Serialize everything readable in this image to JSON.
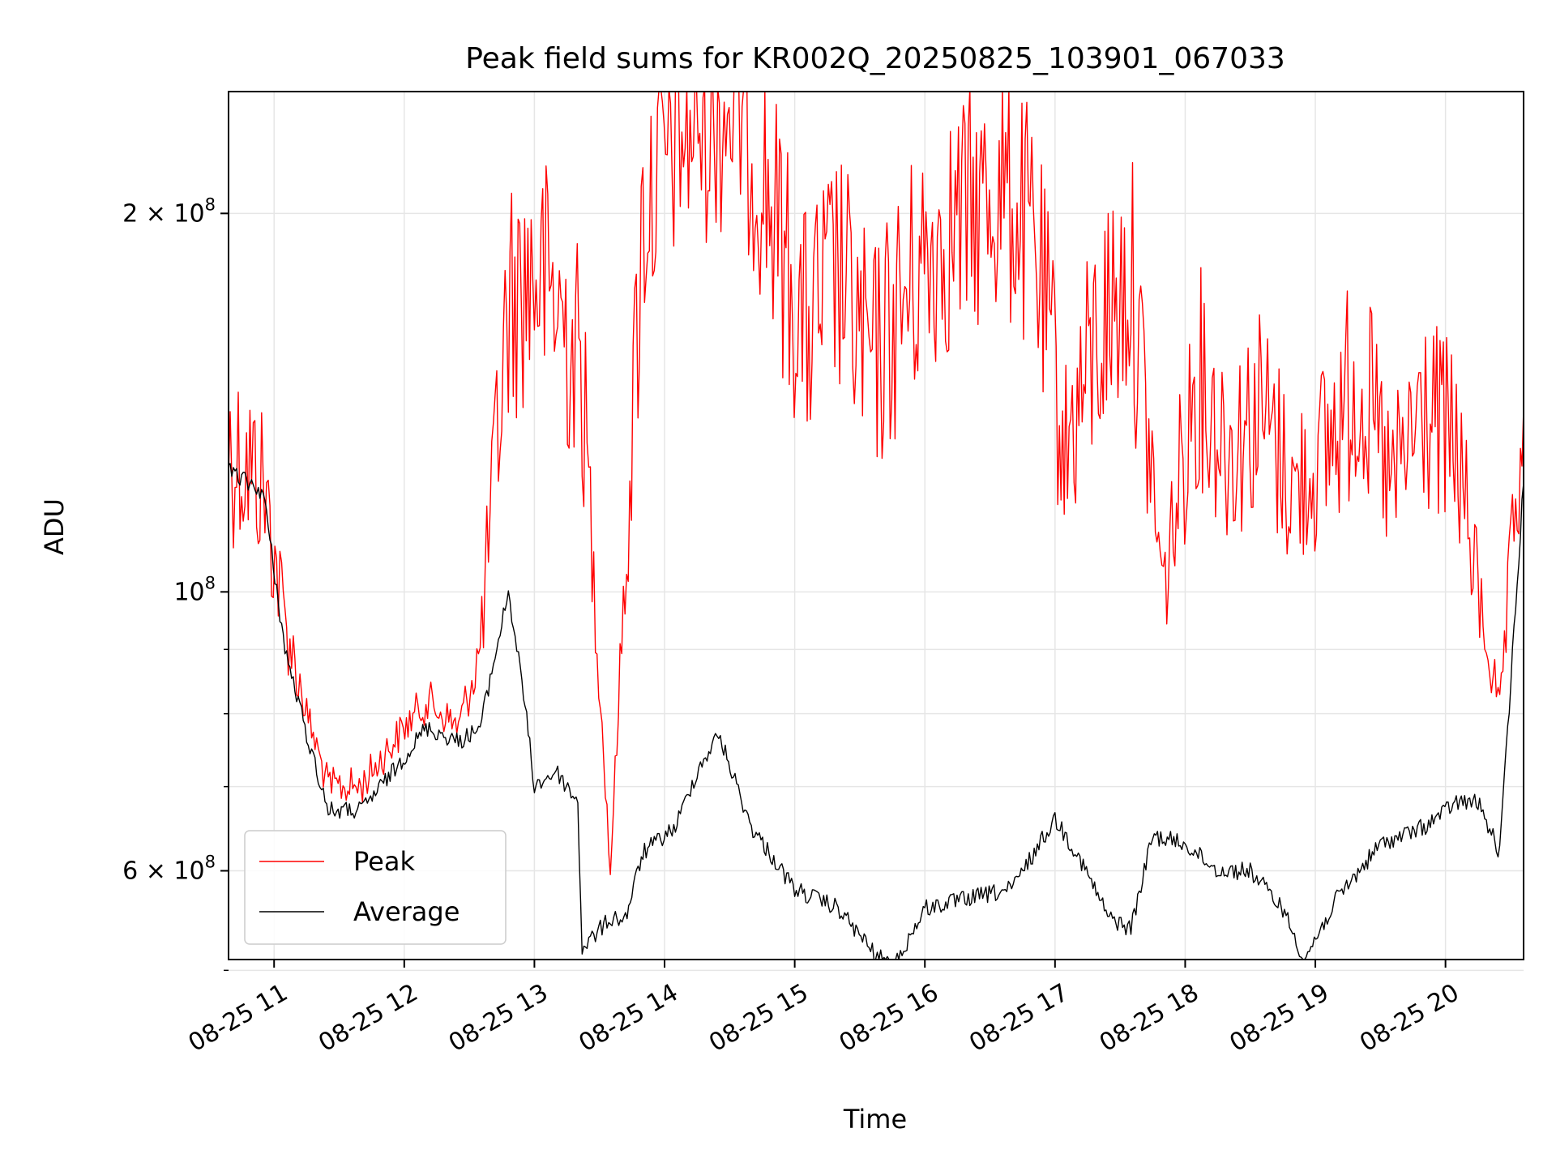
{
  "chart_data": {
    "type": "line",
    "title": "Peak field sums for KR002Q_20250825_103901_067033",
    "xlabel": "Time",
    "ylabel": "ADU",
    "yscale": "log",
    "xlim": [
      "2025-08-25 10:39",
      "2025-08-25 20:36"
    ],
    "ylim": [
      51000000,
      250000000
    ],
    "grid": true,
    "legend_position": "lower-left",
    "x_ticks": [
      "2025-08-25 11:00",
      "2025-08-25 12:00",
      "2025-08-25 13:00",
      "2025-08-25 14:00",
      "2025-08-25 15:00",
      "2025-08-25 16:00",
      "2025-08-25 17:00",
      "2025-08-25 18:00",
      "2025-08-25 19:00",
      "2025-08-25 20:00"
    ],
    "x_tick_labels": [
      "08-25 11",
      "08-25 12",
      "08-25 13",
      "08-25 14",
      "08-25 15",
      "08-25 16",
      "08-25 17",
      "08-25 18",
      "08-25 19",
      "08-25 20"
    ],
    "y_ticks": [
      {
        "value": 200000000,
        "label_mantissa": "2 × 10",
        "label_exp": "8"
      },
      {
        "value": 100000000,
        "label_mantissa": "10",
        "label_exp": "8"
      },
      {
        "value": 60000000,
        "label_mantissa": "6 × 10",
        "label_exp": "8"
      }
    ],
    "y_minor_ticks": [
      50000000,
      70000000,
      80000000,
      90000000
    ],
    "series": [
      {
        "name": "Peak",
        "color": "#ff0000",
        "x": [
          "2025-08-25 10:39",
          "2025-08-25 10:45",
          "2025-08-25 10:55",
          "2025-08-25 11:05",
          "2025-08-25 11:15",
          "2025-08-25 11:25",
          "2025-08-25 11:40",
          "2025-08-25 11:55",
          "2025-08-25 12:10",
          "2025-08-25 12:25",
          "2025-08-25 12:35",
          "2025-08-25 12:48",
          "2025-08-25 13:00",
          "2025-08-25 13:10",
          "2025-08-25 13:22",
          "2025-08-25 13:35",
          "2025-08-25 13:50",
          "2025-08-25 14:05",
          "2025-08-25 14:20",
          "2025-08-25 14:35",
          "2025-08-25 14:50",
          "2025-08-25 15:05",
          "2025-08-25 15:20",
          "2025-08-25 15:35",
          "2025-08-25 15:50",
          "2025-08-25 16:05",
          "2025-08-25 16:20",
          "2025-08-25 16:35",
          "2025-08-25 16:50",
          "2025-08-25 17:05",
          "2025-08-25 17:20",
          "2025-08-25 17:35",
          "2025-08-25 17:50",
          "2025-08-25 18:05",
          "2025-08-25 18:20",
          "2025-08-25 18:35",
          "2025-08-25 18:50",
          "2025-08-25 19:05",
          "2025-08-25 19:20",
          "2025-08-25 19:35",
          "2025-08-25 19:50",
          "2025-08-25 20:05",
          "2025-08-25 20:15",
          "2025-08-25 20:25",
          "2025-08-25 20:36"
        ],
        "y": [
          130000000,
          128000000,
          122000000,
          95000000,
          80000000,
          70000000,
          70000000,
          76000000,
          82000000,
          78000000,
          90000000,
          170000000,
          180000000,
          170000000,
          150000000,
          60000000,
          200000000,
          230000000,
          240000000,
          245000000,
          200000000,
          160000000,
          180000000,
          150000000,
          170000000,
          190000000,
          200000000,
          210000000,
          190000000,
          130000000,
          160000000,
          180000000,
          100000000,
          150000000,
          130000000,
          140000000,
          120000000,
          130000000,
          150000000,
          120000000,
          140000000,
          130000000,
          100000000,
          80000000,
          140000000
        ]
      },
      {
        "name": "Average",
        "color": "#000000",
        "x": [
          "2025-08-25 10:39",
          "2025-08-25 10:45",
          "2025-08-25 10:55",
          "2025-08-25 11:05",
          "2025-08-25 11:15",
          "2025-08-25 11:25",
          "2025-08-25 11:40",
          "2025-08-25 11:55",
          "2025-08-25 12:10",
          "2025-08-25 12:25",
          "2025-08-25 12:35",
          "2025-08-25 12:48",
          "2025-08-25 12:55",
          "2025-08-25 13:00",
          "2025-08-25 13:10",
          "2025-08-25 13:20",
          "2025-08-25 13:22",
          "2025-08-25 13:35",
          "2025-08-25 13:42",
          "2025-08-25 13:50",
          "2025-08-25 14:05",
          "2025-08-25 14:15",
          "2025-08-25 14:25",
          "2025-08-25 14:40",
          "2025-08-25 15:00",
          "2025-08-25 15:20",
          "2025-08-25 15:35",
          "2025-08-25 15:45",
          "2025-08-25 16:00",
          "2025-08-25 16:20",
          "2025-08-25 16:40",
          "2025-08-25 17:00",
          "2025-08-25 17:10",
          "2025-08-25 17:25",
          "2025-08-25 17:35",
          "2025-08-25 17:45",
          "2025-08-25 18:00",
          "2025-08-25 18:15",
          "2025-08-25 18:30",
          "2025-08-25 18:45",
          "2025-08-25 18:55",
          "2025-08-25 19:10",
          "2025-08-25 19:30",
          "2025-08-25 19:50",
          "2025-08-25 20:05",
          "2025-08-25 20:15",
          "2025-08-25 20:25",
          "2025-08-25 20:36"
        ],
        "y": [
          125000000,
          123000000,
          120000000,
          90000000,
          77000000,
          67000000,
          67000000,
          72000000,
          78000000,
          76000000,
          78000000,
          100000000,
          83000000,
          70000000,
          72000000,
          68000000,
          52000000,
          55000000,
          55000000,
          62000000,
          65000000,
          72000000,
          77000000,
          65000000,
          58000000,
          56000000,
          52000000,
          50000000,
          56000000,
          57000000,
          58000000,
          66000000,
          62000000,
          55000000,
          54000000,
          64000000,
          63000000,
          60000000,
          60000000,
          56000000,
          51000000,
          57000000,
          63000000,
          65000000,
          68000000,
          68000000,
          62000000,
          122000000
        ]
      }
    ]
  }
}
